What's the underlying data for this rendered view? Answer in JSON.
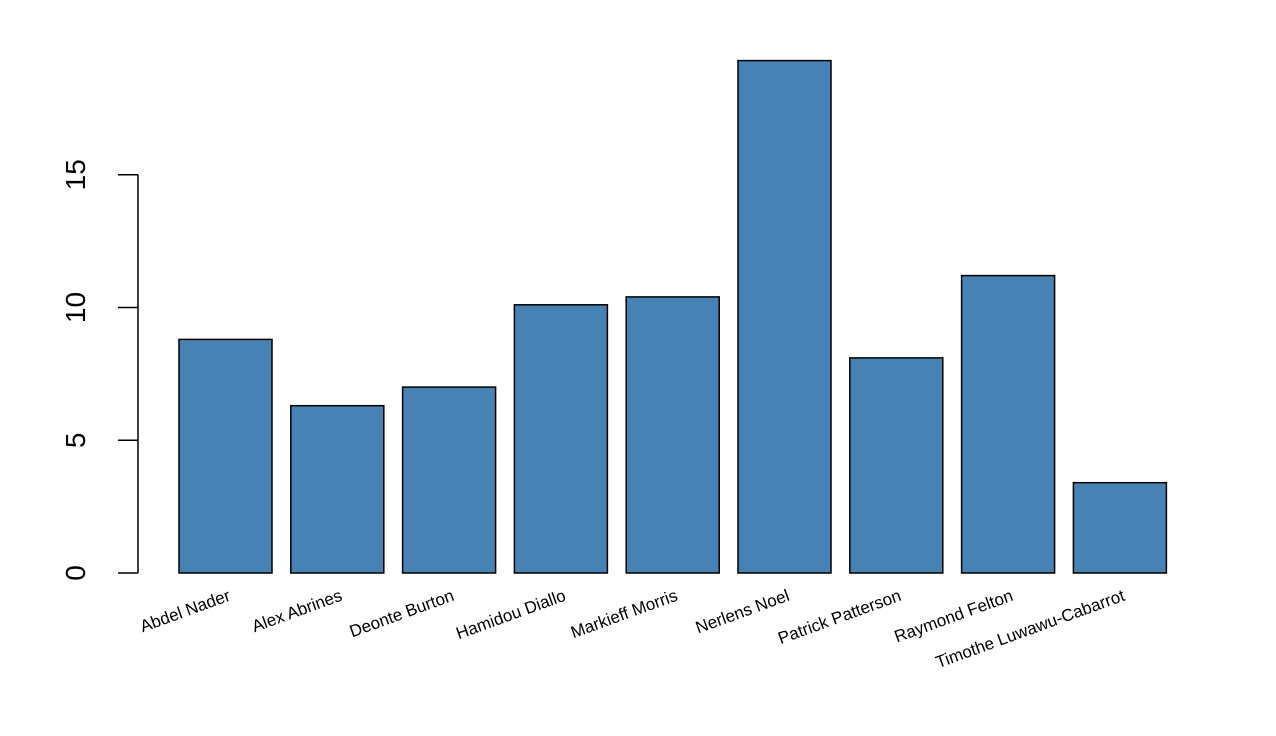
{
  "chart_data": {
    "type": "bar",
    "title": "",
    "xlabel": "",
    "ylabel": "",
    "categories": [
      "Abdel Nader",
      "Alex Abrines",
      "Deonte Burton",
      "Hamidou Diallo",
      "Markieff Morris",
      "Nerlens Noel",
      "Patrick Patterson",
      "Raymond Felton",
      "Timothe Luwawu-Cabarrot"
    ],
    "values": [
      8.8,
      6.3,
      7.0,
      10.1,
      10.4,
      19.3,
      8.1,
      11.2,
      3.4
    ],
    "ylim": [
      0,
      19.3
    ],
    "yticks": [
      0,
      5,
      10,
      15
    ],
    "ytick_labels": [
      "0",
      "5",
      "10",
      "15"
    ],
    "bar_color": "#4682b4",
    "grid": false,
    "legend": "none"
  }
}
